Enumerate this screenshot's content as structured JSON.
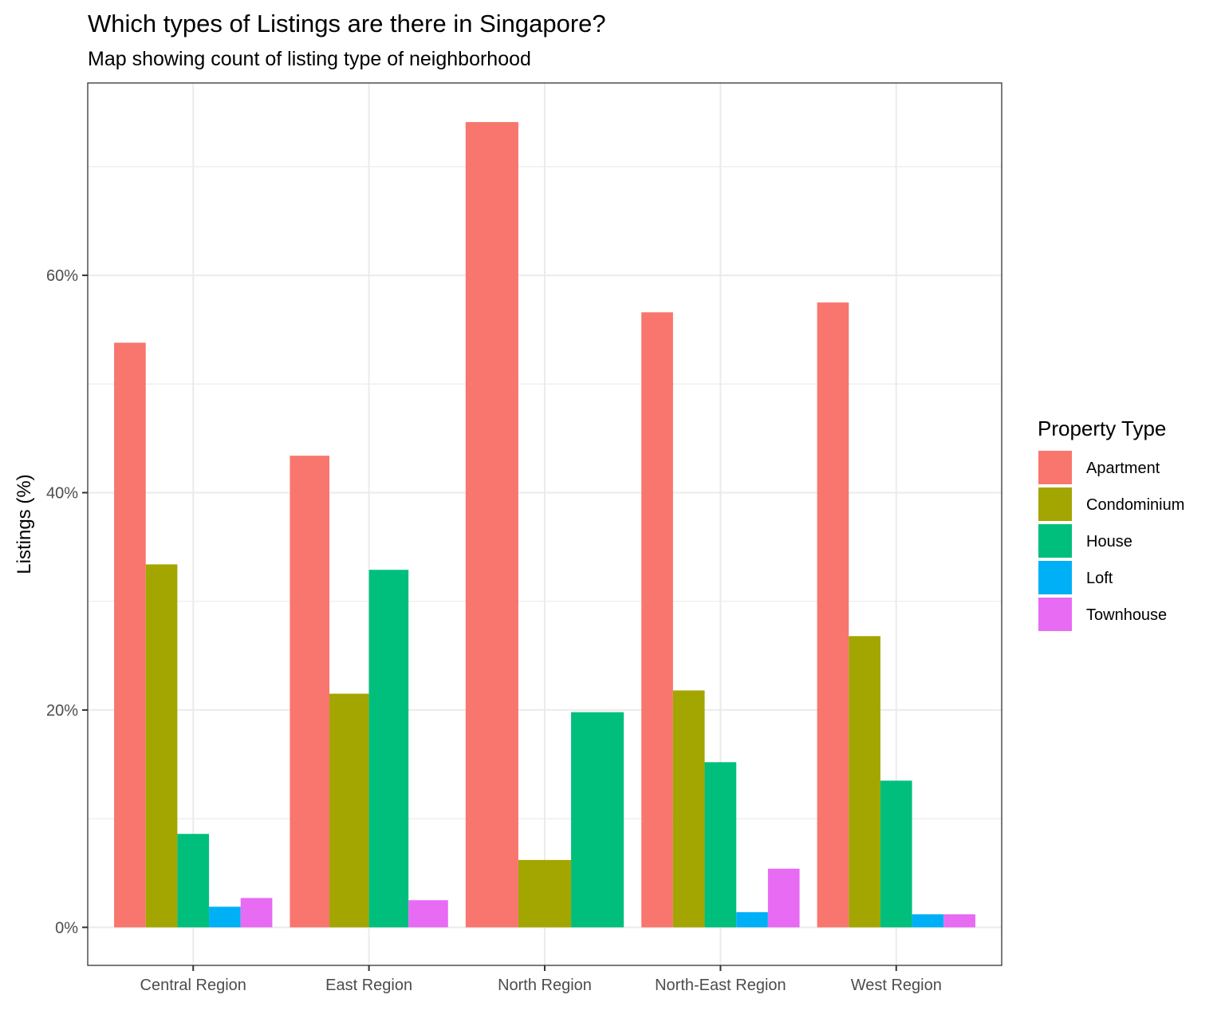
{
  "chart_data": {
    "type": "bar",
    "title": "Which types of Listings are there in Singapore?",
    "subtitle": "Map showing count of listing type of neighborhood",
    "xlabel": "",
    "ylabel": "Listings (%)",
    "ylim": [
      -3.5,
      77.7
    ],
    "yticks": [
      0,
      20,
      40,
      60
    ],
    "ytick_labels": [
      "0%",
      "20%",
      "40%",
      "60%"
    ],
    "grid": true,
    "legend_title": "Property Type",
    "legend_position": "right",
    "categories": [
      "Central Region",
      "East Region",
      "North Region",
      "North-East Region",
      "West Region"
    ],
    "series": [
      {
        "name": "Apartment",
        "color": "#F8766D",
        "values": [
          53.8,
          43.4,
          74.1,
          56.6,
          57.5
        ]
      },
      {
        "name": "Condominium",
        "color": "#A3A500",
        "values": [
          33.4,
          21.5,
          6.2,
          21.8,
          26.8
        ]
      },
      {
        "name": "House",
        "color": "#00BF7D",
        "values": [
          8.6,
          32.9,
          19.8,
          15.2,
          13.5
        ]
      },
      {
        "name": "Loft",
        "color": "#00B0F6",
        "values": [
          1.9,
          null,
          null,
          1.4,
          1.2
        ]
      },
      {
        "name": "Townhouse",
        "color": "#E76BF3",
        "values": [
          2.7,
          2.5,
          null,
          5.4,
          1.2
        ]
      }
    ]
  }
}
